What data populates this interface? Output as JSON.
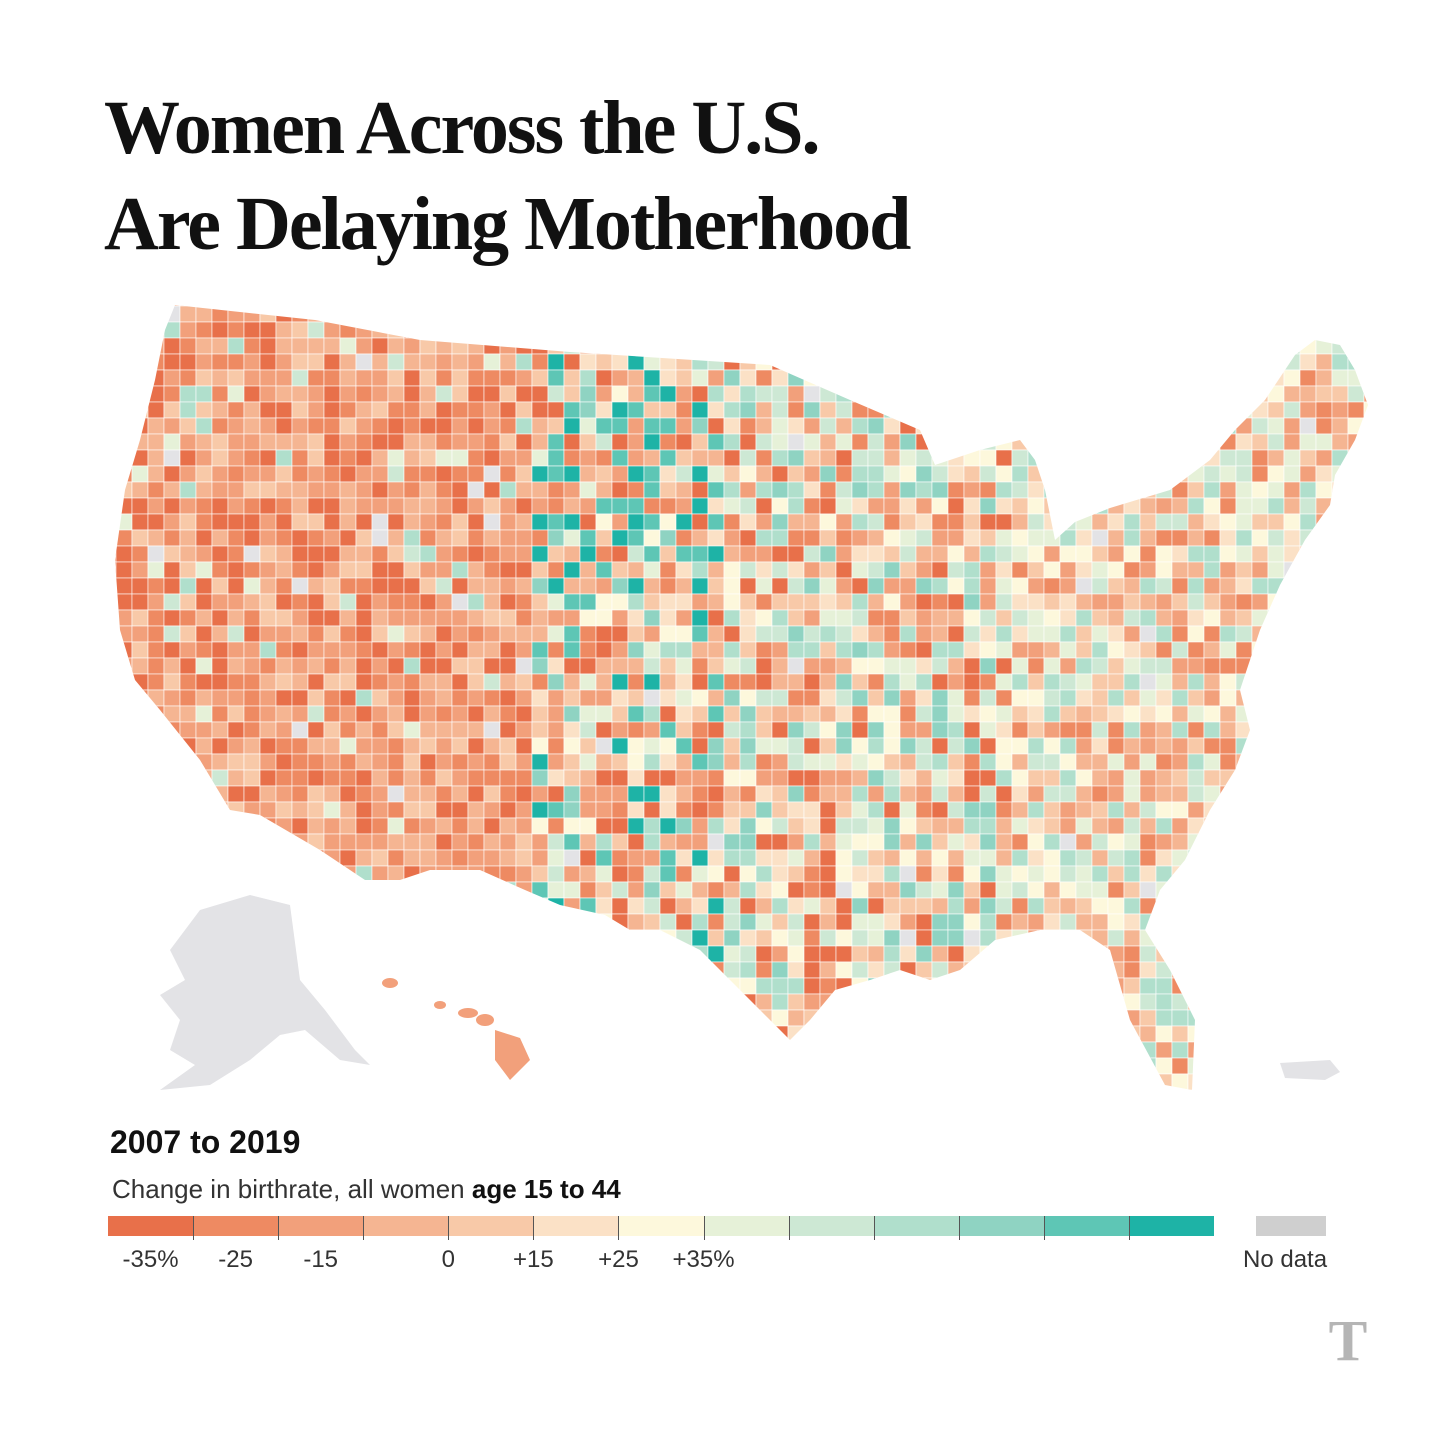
{
  "title": {
    "line1": "Women Across the U.S.",
    "line2": "Are Delaying Motherhood"
  },
  "legend": {
    "period": "2007 to 2019",
    "subtitle_prefix": "Change in birthrate, all women ",
    "subtitle_bold": "age 15 to 44",
    "scale_colors": [
      "#e8704a",
      "#ee8a62",
      "#f2a07b",
      "#f5b592",
      "#f8c9a8",
      "#fbe1c6",
      "#fdf8dc",
      "#e6f1d8",
      "#cde8d4",
      "#b0dfcc",
      "#8fd3c2",
      "#5ec6b5",
      "#1eb3a6"
    ],
    "tick_labels": [
      {
        "text": "-35%",
        "index": 1
      },
      {
        "text": "-25",
        "index": 3
      },
      {
        "text": "-15",
        "index": 5
      },
      {
        "text": "0",
        "index": 8
      },
      {
        "text": "+15",
        "index": 10
      },
      {
        "text": "+25",
        "index": 12
      },
      {
        "text": "+35%",
        "index": 14
      }
    ],
    "nodata_label": "No data",
    "nodata_color": "#cfcfcf"
  },
  "map": {
    "no_data_color": "#e3e3e6",
    "dominant_negative": "#ee8a62",
    "dominant_positive": "#1eb3a6"
  }
}
